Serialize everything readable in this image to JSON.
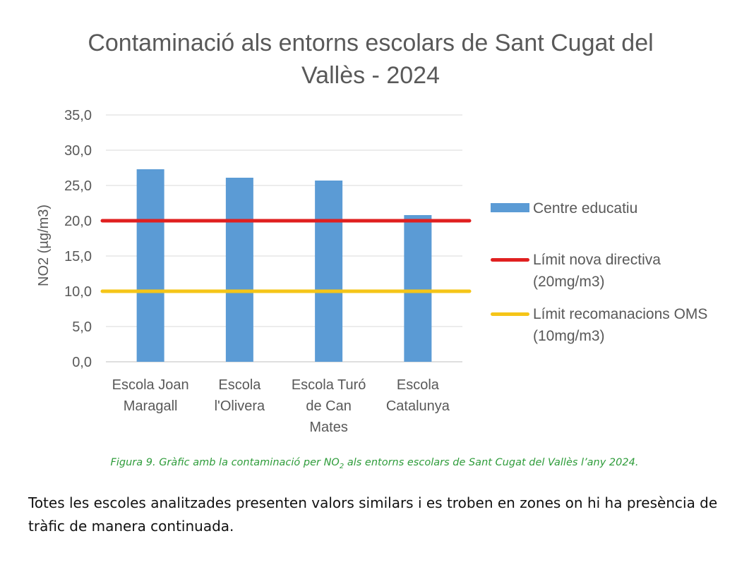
{
  "chart_data": {
    "type": "bar",
    "title": "Contaminació als entorns escolars de Sant Cugat del Vallès - 2024",
    "ylabel": "NO2 (µg/m3)",
    "xlabel": "",
    "ylim": [
      0,
      35
    ],
    "ytick_step": 5,
    "ytick_labels": [
      "0,0",
      "5,0",
      "10,0",
      "15,0",
      "20,0",
      "25,0",
      "30,0",
      "35,0"
    ],
    "grid": true,
    "legend_position": "right",
    "categories": [
      "Escola Joan\nMaragall",
      "Escola\nl'Olivera",
      "Escola Turó\nde Can\nMates",
      "Escola\nCatalunya"
    ],
    "series": [
      {
        "name": "Centre educatiu",
        "values": [
          27.3,
          26.1,
          25.7,
          20.8
        ],
        "color": "#5b9bd5"
      }
    ],
    "reference_lines": [
      {
        "name": "Límit nova directiva\n(20mg/m3)",
        "value": 20,
        "color": "#e02020"
      },
      {
        "name": "Límit recomanacions OMS\n(10mg/m3)",
        "value": 10,
        "color": "#f5c518"
      }
    ]
  },
  "caption": {
    "before": "Figura 9. Gràfic amb la contaminació per NO",
    "sub": "2",
    "after": " als entorns escolars de Sant Cugat del Vallès l’any 2024."
  },
  "paragraph": "Totes les escoles analitzades presenten valors similars i es troben en zones on hi ha presència de tràfic de manera continuada."
}
